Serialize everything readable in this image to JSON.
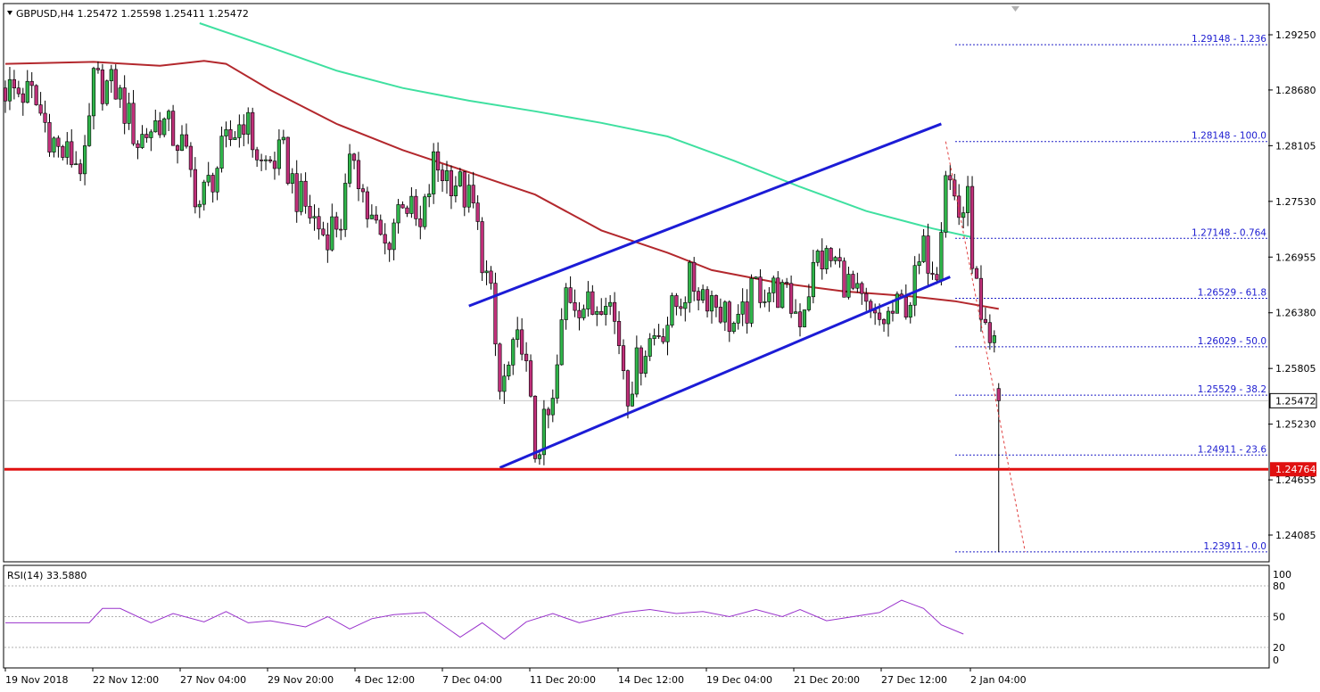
{
  "header": {
    "title": "GBPUSD,H4  1.25472  1.25598  1.25411  1.25472",
    "rsi_title": "RSI(14) 33.5880"
  },
  "colors": {
    "bull": "#2fb54a",
    "bear": "#c0307a",
    "ma_red": "#b3282d",
    "ma_green": "#3fe0a0",
    "channel": "#1c1cd6",
    "fib": "#2020c8",
    "support": "#e01010",
    "rsi": "#9932cc",
    "price_box": "#e01010"
  },
  "chart_data": [
    {
      "type": "candlestick",
      "symbol": "GBPUSD",
      "timeframe": "H4",
      "ohlc_current": [
        1.25472,
        1.25598,
        1.25411,
        1.25472
      ],
      "ylim": [
        1.2369,
        1.2935
      ],
      "y_ticks": [
        "1.29250",
        "1.28680",
        "1.28105",
        "1.27530",
        "1.26955",
        "1.26380",
        "1.25805",
        "1.25230",
        "1.24655",
        "1.24085"
      ],
      "x_labels": [
        "19 Nov 2018",
        "22 Nov 12:00",
        "27 Nov 04:00",
        "29 Nov 20:00",
        "4 Dec 12:00",
        "7 Dec 04:00",
        "11 Dec 20:00",
        "14 Dec 12:00",
        "19 Dec 04:00",
        "21 Dec 20:00",
        "27 Dec 12:00",
        "2 Jan 04:00"
      ],
      "current_price": "1.25472",
      "support": {
        "value": 1.24764,
        "label": "1.24764"
      },
      "fib_levels": [
        {
          "value": 1.29148,
          "label": "1.29148 - 1.236"
        },
        {
          "value": 1.28148,
          "label": "1.28148 - 100.0"
        },
        {
          "value": 1.27148,
          "label": "1.27148 - 0.764"
        },
        {
          "value": 1.26529,
          "label": "1.26529 - 61.8"
        },
        {
          "value": 1.26029,
          "label": "1.26029 - 50.0"
        },
        {
          "value": 1.25529,
          "label": "1.25529 - 38.2"
        },
        {
          "value": 1.24911,
          "label": "1.24911 - 23.6"
        },
        {
          "value": 1.23911,
          "label": "1.23911 - 0.0"
        }
      ],
      "ma_red": [
        [
          0,
          1.2895
        ],
        [
          20,
          1.2897
        ],
        [
          35,
          1.2893
        ],
        [
          45,
          1.2898
        ],
        [
          50,
          1.2895
        ],
        [
          60,
          1.2868
        ],
        [
          75,
          1.2833
        ],
        [
          90,
          1.2806
        ],
        [
          105,
          1.2783
        ],
        [
          120,
          1.276
        ],
        [
          135,
          1.2723
        ],
        [
          150,
          1.27
        ],
        [
          160,
          1.2682
        ],
        [
          175,
          1.2669
        ],
        [
          190,
          1.266
        ],
        [
          205,
          1.2655
        ],
        [
          215,
          1.265
        ],
        [
          225,
          1.2642
        ]
      ],
      "ma_green": [
        [
          44,
          1.2937
        ],
        [
          60,
          1.2912
        ],
        [
          75,
          1.2888
        ],
        [
          90,
          1.287
        ],
        [
          105,
          1.2857
        ],
        [
          120,
          1.2846
        ],
        [
          135,
          1.2834
        ],
        [
          150,
          1.282
        ],
        [
          165,
          1.2795
        ],
        [
          180,
          1.2768
        ],
        [
          195,
          1.2743
        ],
        [
          210,
          1.2725
        ],
        [
          219,
          1.2716
        ]
      ],
      "channel": {
        "upper": [
          [
            105,
            1.2645
          ],
          [
            212,
            1.2833
          ]
        ],
        "lower": [
          [
            112,
            1.2478
          ],
          [
            214,
            1.2675
          ]
        ]
      }
    },
    {
      "type": "line",
      "name": "RSI(14)",
      "value": "33.5880",
      "ylim": [
        0,
        100
      ],
      "y_ticks": [
        "100",
        "80",
        "50",
        "20",
        "0"
      ],
      "levels": [
        80,
        50,
        20
      ],
      "values": [
        [
          0,
          44
        ],
        [
          10,
          44
        ],
        [
          19,
          44
        ],
        [
          22,
          58
        ],
        [
          26,
          58
        ],
        [
          33,
          44
        ],
        [
          38,
          53
        ],
        [
          45,
          45
        ],
        [
          50,
          55
        ],
        [
          55,
          44
        ],
        [
          60,
          46
        ],
        [
          68,
          40
        ],
        [
          73,
          50
        ],
        [
          78,
          38
        ],
        [
          83,
          48
        ],
        [
          88,
          52
        ],
        [
          95,
          54
        ],
        [
          103,
          30
        ],
        [
          108,
          44
        ],
        [
          113,
          28
        ],
        [
          118,
          45
        ],
        [
          124,
          53
        ],
        [
          130,
          44
        ],
        [
          136,
          50
        ],
        [
          140,
          54
        ],
        [
          146,
          57
        ],
        [
          152,
          53
        ],
        [
          158,
          55
        ],
        [
          164,
          50
        ],
        [
          170,
          57
        ],
        [
          176,
          50
        ],
        [
          180,
          57
        ],
        [
          186,
          46
        ],
        [
          192,
          50
        ],
        [
          198,
          54
        ],
        [
          203,
          66
        ],
        [
          208,
          58
        ],
        [
          212,
          42
        ],
        [
          217,
          33
        ]
      ]
    }
  ]
}
